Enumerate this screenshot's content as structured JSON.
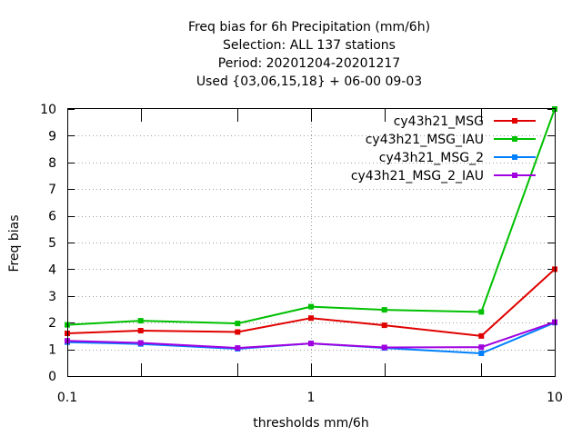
{
  "chart_data": {
    "type": "line",
    "title_lines": [
      "Freq bias  for 6h Precipitation (mm/6h)",
      "Selection: ALL     137 stations",
      "Period: 20201204-20201217",
      "Used {03,06,15,18} + 06-00 09-03"
    ],
    "xlabel": "thresholds mm/6h",
    "ylabel": "Freq bias",
    "x_scale": "log",
    "xlim": [
      0.1,
      10
    ],
    "ylim": [
      0,
      10
    ],
    "x_ticks": [
      0.1,
      1,
      10
    ],
    "x_tick_labels": [
      "0.1",
      "1",
      "10"
    ],
    "x_minor_ticks": [
      0.2,
      0.5,
      2,
      5
    ],
    "y_ticks": [
      0,
      1,
      2,
      3,
      4,
      5,
      6,
      7,
      8,
      9,
      10
    ],
    "y_tick_labels": [
      "0",
      "1",
      "2",
      "3",
      "4",
      "5",
      "6",
      "7",
      "8",
      "9",
      "10"
    ],
    "grid": "dotted at major ticks",
    "legend_position": "top-right",
    "x": [
      0.1,
      0.2,
      0.5,
      1,
      2,
      5,
      10
    ],
    "series": [
      {
        "name": "cy43h21_MSG",
        "color": "#e00000",
        "values": [
          1.6,
          1.7,
          1.65,
          2.17,
          1.9,
          1.5,
          4.0
        ]
      },
      {
        "name": "cy43h21_MSG_IAU",
        "color": "#00c000",
        "values": [
          1.92,
          2.07,
          1.97,
          2.6,
          2.48,
          2.4,
          10.0
        ]
      },
      {
        "name": "cy43h21_MSG_2",
        "color": "#0080ff",
        "values": [
          1.27,
          1.2,
          1.02,
          1.22,
          1.05,
          0.85,
          2.0
        ]
      },
      {
        "name": "cy43h21_MSG_2_IAU",
        "color": "#a000e0",
        "values": [
          1.32,
          1.24,
          1.05,
          1.22,
          1.07,
          1.08,
          2.02
        ]
      }
    ]
  }
}
